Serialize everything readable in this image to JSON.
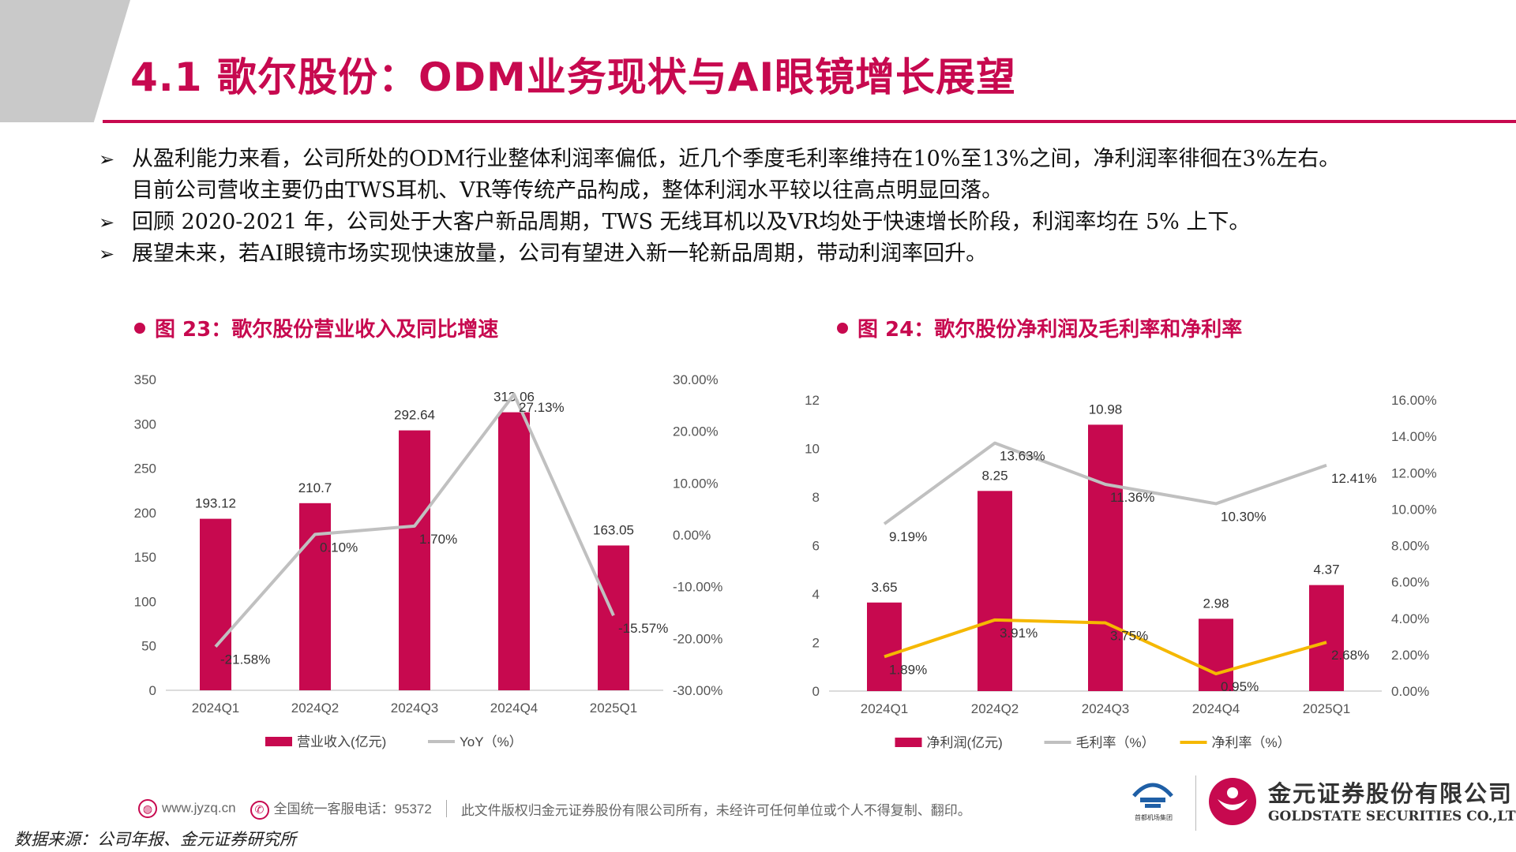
{
  "title": "4.1 歌尔股份：ODM业务现状与AI眼镜增长展望",
  "bullets": [
    {
      "text": "从盈利能力来看，公司所处的ODM行业整体利润率偏低，近几个季度毛利率维持在10%至13%之间，净利润率徘徊在3%左右。",
      "text2": "目前公司营收主要仍由TWS耳机、VR等传统产品构成，整体利润水平较以往高点明显回落。"
    },
    {
      "text": "回顾 2020-2021 年，公司处于大客户新品周期，TWS 无线耳机以及VR均处于快速增长阶段，利润率均在 5% 上下。"
    },
    {
      "text": "展望未来，若AI眼镜市场实现快速放量，公司有望进入新一轮新品周期，带动利润率回升。"
    }
  ],
  "chart_data": [
    {
      "type": "bar",
      "heading": "图 23：歌尔股份营业收入及同比增速",
      "categories": [
        "2024Q1",
        "2024Q2",
        "2024Q3",
        "2024Q4",
        "2025Q1"
      ],
      "series": [
        {
          "name": "营业收入(亿元)",
          "type": "bar",
          "axis": "left",
          "values": [
            193.12,
            210.7,
            292.64,
            313.06,
            163.05
          ],
          "labels": [
            "193.12",
            "210.7",
            "292.64",
            "313.06",
            "163.05"
          ],
          "color": "#c7094f"
        },
        {
          "name": "YoY（%）",
          "type": "line",
          "axis": "right",
          "values": [
            -21.58,
            0.1,
            1.7,
            27.13,
            -15.57
          ],
          "labels": [
            "-21.58%",
            "0.10%",
            "1.70%",
            "27.13%",
            "-15.57%"
          ],
          "color": "#c0c0c0"
        }
      ],
      "y_left": {
        "min": 0,
        "max": 350,
        "ticks": [
          "0",
          "50",
          "100",
          "150",
          "200",
          "250",
          "300",
          "350"
        ]
      },
      "y_right": {
        "min": -30,
        "max": 30,
        "ticks": [
          "-30.00%",
          "-20.00%",
          "-10.00%",
          "0.00%",
          "10.00%",
          "20.00%",
          "30.00%"
        ]
      },
      "legend_position": "bottom",
      "grid": false
    },
    {
      "type": "bar",
      "heading": "图 24：歌尔股份净利润及毛利率和净利率",
      "categories": [
        "2024Q1",
        "2024Q2",
        "2024Q3",
        "2024Q4",
        "2025Q1"
      ],
      "series": [
        {
          "name": "净利润(亿元)",
          "type": "bar",
          "axis": "left",
          "values": [
            3.65,
            8.25,
            10.98,
            2.98,
            4.37
          ],
          "labels": [
            "3.65",
            "8.25",
            "10.98",
            "2.98",
            "4.37"
          ],
          "color": "#c7094f"
        },
        {
          "name": "毛利率（%）",
          "type": "line",
          "axis": "right",
          "values": [
            9.19,
            13.63,
            11.36,
            10.3,
            12.41
          ],
          "labels": [
            "9.19%",
            "13.63%",
            "11.36%",
            "10.30%",
            "12.41%"
          ],
          "color": "#c0c0c0"
        },
        {
          "name": "净利率（%）",
          "type": "line",
          "axis": "right",
          "values": [
            1.89,
            3.91,
            3.75,
            0.95,
            2.68
          ],
          "labels": [
            "1.89%",
            "3.91%",
            "3.75%",
            "0.95%",
            "2.68%"
          ],
          "color": "#f5b800"
        }
      ],
      "y_left": {
        "min": 0,
        "max": 12,
        "ticks": [
          "0",
          "2",
          "4",
          "6",
          "8",
          "10",
          "12"
        ]
      },
      "y_right": {
        "min": 0,
        "max": 16,
        "ticks": [
          "0.00%",
          "2.00%",
          "4.00%",
          "6.00%",
          "8.00%",
          "10.00%",
          "12.00%",
          "14.00%",
          "16.00%"
        ]
      },
      "legend_position": "bottom",
      "grid": false
    }
  ],
  "footer": {
    "website": "www.jyzq.cn",
    "hotline": "全国统一客服电话：95372",
    "copyright": "此文件版权归金元证券股份有限公司所有，未经许可任何单位或个人不得复制、翻印。"
  },
  "source": "数据来源：公司年报、金元证券研究所",
  "logos": {
    "group_sub": "首都机场集团",
    "company_cn": "金元证券股份有限公司",
    "company_en": "GOLDSTATE SECURITIES CO.,LTD.",
    "brand_color": "#c7094f"
  }
}
